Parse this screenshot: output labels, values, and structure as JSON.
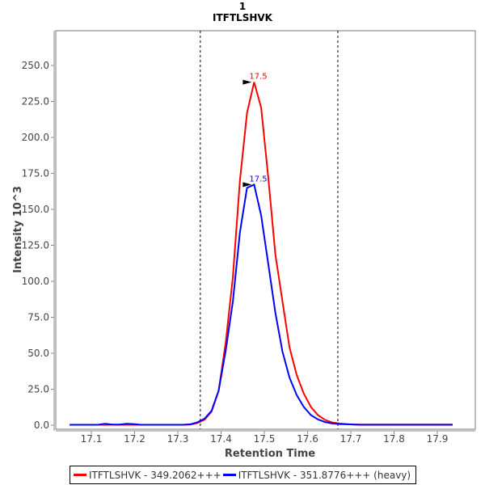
{
  "chart_data": {
    "type": "line",
    "title": "1",
    "subtitle": "ITFTLSHVK",
    "xlabel": "Retention Time",
    "ylabel": "Intensity 10^3",
    "xlim": [
      17.02,
      17.99
    ],
    "ylim": [
      0,
      270
    ],
    "x_ticks": [
      "17.1",
      "17.2",
      "17.3",
      "17.4",
      "17.5",
      "17.6",
      "17.7",
      "17.8",
      "17.9"
    ],
    "y_ticks": [
      "0.0",
      "25.0",
      "50.0",
      "75.0",
      "100.0",
      "125.0",
      "150.0",
      "175.0",
      "200.0",
      "225.0",
      "250.0"
    ],
    "x_start": 17.05,
    "x_step": 0.0164,
    "integration_boundaries": [
      17.352,
      17.67
    ],
    "legend_position": "bottom",
    "series": [
      {
        "name": "ITFTLSHVK - 349.2062+++",
        "color": "#ff0000",
        "peak_label": "17.5",
        "peak_index": 26,
        "values": [
          0.3,
          0.3,
          0.3,
          0.3,
          0.3,
          0.3,
          0.3,
          0.3,
          0.3,
          0.3,
          0.3,
          0.3,
          0.3,
          0.3,
          0.3,
          0.3,
          0.3,
          0.4,
          1.5,
          3.8,
          9.4,
          24,
          57.7,
          103,
          170,
          217,
          238.4,
          220.6,
          172,
          118.5,
          85.8,
          54,
          35,
          22,
          12.7,
          7,
          3.7,
          1.9,
          1.2,
          0.8,
          0.4,
          0.4,
          0.4,
          0.4,
          0.4,
          0.4,
          0.4,
          0.4,
          0.4,
          0.4,
          0.4,
          0.4,
          0.4,
          0.4,
          0.4
        ]
      },
      {
        "name": "ITFTLSHVK - 351.8776+++ (heavy)",
        "color": "#0000ff",
        "peak_label": "17.5",
        "peak_index": 26,
        "values": [
          0.3,
          0.3,
          0.3,
          0.3,
          0.3,
          1.0,
          0.4,
          0.4,
          1.0,
          0.8,
          0.3,
          0.3,
          0.3,
          0.3,
          0.3,
          0.3,
          0.3,
          0.6,
          2.0,
          4.5,
          10,
          24,
          52,
          86,
          134,
          165,
          167.2,
          145.7,
          112,
          78,
          51,
          33,
          21,
          12.7,
          7,
          4,
          2.2,
          1.2,
          0.8,
          0.6,
          0.5,
          0.3,
          0.3,
          0.3,
          0.3,
          0.3,
          0.3,
          0.3,
          0.3,
          0.3,
          0.3,
          0.3,
          0.3,
          0.3,
          0.3
        ]
      }
    ]
  }
}
